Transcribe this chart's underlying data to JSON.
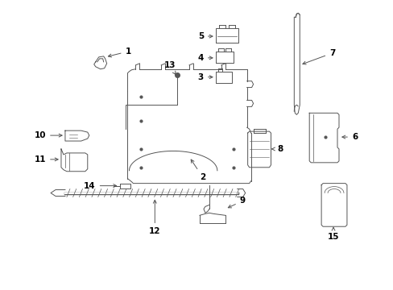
{
  "bg_color": "#ffffff",
  "line_color": "#555555",
  "label_color": "#000000",
  "lw": 0.7
}
